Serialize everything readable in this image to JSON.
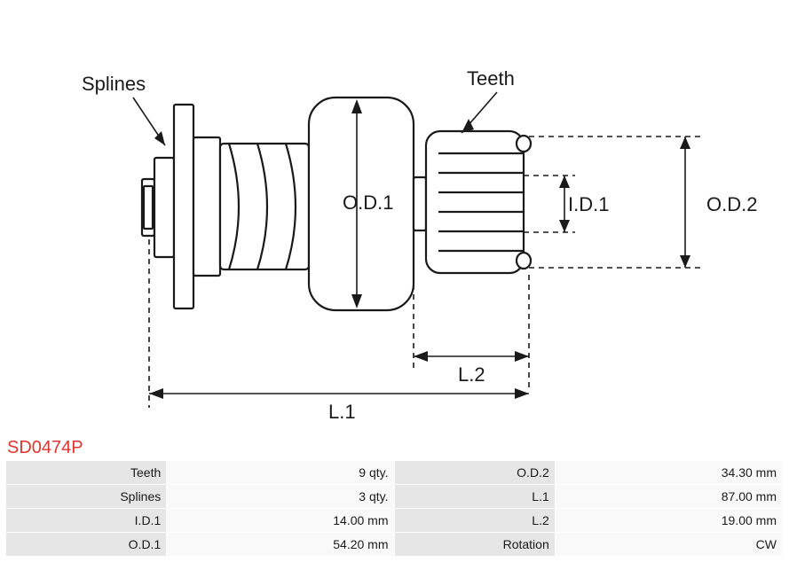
{
  "part_number": "SD0474P",
  "diagram": {
    "labels": {
      "splines": "Splines",
      "teeth": "Teeth",
      "od1": "O.D.1",
      "od2": "O.D.2",
      "id1": "I.D.1",
      "l1": "L.1",
      "l2": "L.2"
    },
    "stroke_color": "#1a1a1a",
    "stroke_width_main": 2.2,
    "stroke_width_dim": 1.6,
    "fill_shape": "#ffffff",
    "font_size_label": 22
  },
  "spec_table": {
    "rows": [
      {
        "label_left": "Teeth",
        "value_left": "9 qty.",
        "label_right": "O.D.2",
        "value_right": "34.30 mm"
      },
      {
        "label_left": "Splines",
        "value_left": "3 qty.",
        "label_right": "L.1",
        "value_right": "87.00 mm"
      },
      {
        "label_left": "I.D.1",
        "value_left": "14.00 mm",
        "label_right": "L.2",
        "value_right": "19.00 mm"
      },
      {
        "label_left": "O.D.1",
        "value_left": "54.20 mm",
        "label_right": "Rotation",
        "value_right": "CW"
      }
    ]
  }
}
